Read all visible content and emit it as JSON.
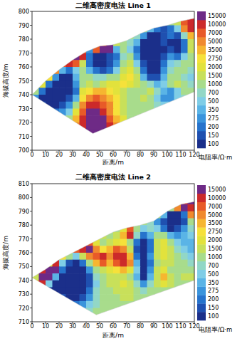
{
  "chart_data": [
    {
      "type": "heatmap",
      "title": "二维高密度电法 Line 1",
      "x_label": "距离/m",
      "y_label": "海拔高度/m",
      "xlim": [
        0,
        120
      ],
      "ylim": [
        700,
        800
      ],
      "xticks": [
        0,
        10,
        20,
        30,
        40,
        50,
        60,
        70,
        80,
        90,
        100,
        110,
        120
      ],
      "yticks": [
        700,
        710,
        720,
        730,
        740,
        750,
        760,
        770,
        780,
        790,
        800
      ],
      "x_edges": [
        0,
        5,
        10,
        15,
        20,
        25,
        30,
        35,
        40,
        45,
        50,
        55,
        60,
        65,
        70,
        75,
        80,
        85,
        90,
        95,
        100,
        105,
        110,
        115,
        120
      ],
      "y_edges": [
        795,
        790,
        785,
        780,
        775,
        770,
        765,
        760,
        755,
        750,
        745,
        740,
        735,
        730,
        725,
        720,
        715,
        710
      ],
      "surface": {
        "x": [
          0,
          10,
          20,
          30,
          40,
          50,
          60,
          70,
          80,
          90,
          100,
          110,
          120
        ],
        "y": [
          740,
          750,
          758,
          765,
          771,
          775,
          776,
          779,
          784,
          788,
          790,
          793,
          795
        ]
      },
      "base": {
        "x": [
          0,
          45,
          120
        ],
        "y": [
          740,
          712,
          742
        ]
      },
      "cells": [
        [
          null,
          null,
          null,
          null,
          null,
          null,
          null,
          null,
          null,
          null,
          null,
          null,
          null,
          null,
          null,
          null,
          null,
          null,
          null,
          null,
          1200,
          1700,
          8500,
          12000
        ],
        [
          null,
          null,
          null,
          null,
          null,
          null,
          null,
          null,
          null,
          null,
          null,
          null,
          null,
          null,
          null,
          null,
          1200,
          420,
          240,
          170,
          240,
          600,
          6000,
          12000
        ],
        [
          null,
          null,
          null,
          null,
          null,
          null,
          null,
          null,
          null,
          null,
          null,
          null,
          null,
          null,
          1200,
          850,
          310,
          120,
          120,
          170,
          240,
          170,
          850,
          4200
        ],
        [
          null,
          null,
          null,
          null,
          null,
          null,
          null,
          null,
          null,
          null,
          8500,
          16000,
          1700,
          1200,
          850,
          420,
          120,
          120,
          120,
          170,
          120,
          120,
          240,
          1700
        ],
        [
          null,
          null,
          null,
          null,
          null,
          null,
          null,
          6000,
          310,
          8500,
          16000,
          16000,
          420,
          1200,
          600,
          240,
          120,
          120,
          120,
          120,
          170,
          120,
          240,
          1700
        ],
        [
          null,
          null,
          null,
          null,
          null,
          null,
          16000,
          12000,
          240,
          120,
          120,
          170,
          240,
          850,
          1200,
          310,
          120,
          120,
          120,
          170,
          310,
          240,
          600,
          1200
        ],
        [
          null,
          null,
          null,
          null,
          8500,
          12000,
          8500,
          1700,
          240,
          120,
          120,
          170,
          310,
          1200,
          1700,
          600,
          170,
          120,
          120,
          240,
          600,
          850,
          1200,
          1200
        ],
        [
          null,
          null,
          null,
          6000,
          420,
          240,
          600,
          1200,
          420,
          240,
          170,
          240,
          600,
          1700,
          2400,
          1200,
          240,
          120,
          120,
          310,
          850,
          1200,
          1200,
          850
        ],
        [
          null,
          null,
          3100,
          310,
          120,
          120,
          420,
          1200,
          1200,
          850,
          850,
          1200,
          1200,
          2400,
          3100,
          1700,
          420,
          170,
          170,
          420,
          1200,
          1200,
          850,
          600
        ],
        [
          null,
          2400,
          240,
          120,
          120,
          120,
          310,
          1200,
          1700,
          1200,
          1700,
          2400,
          2400,
          3100,
          2400,
          1700,
          1200,
          850,
          420,
          600,
          1200,
          1700,
          1200,
          850
        ],
        [
          1200,
          240,
          120,
          120,
          120,
          120,
          240,
          2400,
          3100,
          4200,
          4200,
          3100,
          2400,
          1700,
          1200,
          1200,
          1200,
          1700,
          850,
          420,
          310,
          600,
          1200,
          1200
        ],
        [
          310,
          120,
          120,
          120,
          120,
          170,
          420,
          3100,
          6000,
          8500,
          6000,
          4200,
          3100,
          1700,
          1200,
          1200,
          1700,
          1200,
          600,
          310,
          310,
          600,
          850,
          null
        ],
        [
          null,
          170,
          120,
          120,
          170,
          310,
          1200,
          6000,
          12000,
          12000,
          8500,
          6000,
          3100,
          1700,
          1200,
          1200,
          1200,
          1200,
          850,
          600,
          600,
          null,
          null,
          null
        ],
        [
          null,
          null,
          null,
          240,
          310,
          600,
          2400,
          8500,
          16000,
          16000,
          12000,
          6000,
          3100,
          1700,
          1200,
          1200,
          1200,
          1200,
          null,
          null,
          null,
          null,
          null,
          null
        ],
        [
          null,
          null,
          null,
          null,
          600,
          1200,
          4200,
          12000,
          16000,
          16000,
          16000,
          8500,
          4200,
          2400,
          1200,
          1200,
          null,
          null,
          null,
          null,
          null,
          null,
          null,
          null
        ],
        [
          null,
          null,
          null,
          null,
          null,
          null,
          6000,
          12000,
          16000,
          16000,
          16000,
          12000,
          6000,
          null,
          null,
          null,
          null,
          null,
          null,
          null,
          null,
          null,
          null,
          null
        ],
        [
          null,
          null,
          null,
          null,
          null,
          null,
          null,
          null,
          16000,
          16000,
          16000,
          null,
          null,
          null,
          null,
          null,
          null,
          null,
          null,
          null,
          null,
          null,
          null,
          null
        ]
      ],
      "colorbar": {
        "label": "电阻率/Ω·m",
        "levels": [
          100,
          150,
          200,
          275,
          350,
          500,
          700,
          1000,
          1500,
          2000,
          2750,
          3500,
          5000,
          7000,
          10000,
          15000
        ],
        "colors": [
          "#1b2f8a",
          "#1f50b0",
          "#2673cc",
          "#3a94dc",
          "#5ab4e6",
          "#7fcde6",
          "#92d7c6",
          "#a8dc8c",
          "#c8e05a",
          "#e2e23c",
          "#f6e13a",
          "#f6b630",
          "#f08a2e",
          "#e85a28",
          "#cc2a2a",
          "#6e2a86"
        ]
      }
    },
    {
      "type": "heatmap",
      "title": "二维高密度电法 Line 2",
      "x_label": "距离/m",
      "y_label": "海拔高度/m",
      "xlim": [
        0,
        120
      ],
      "ylim": [
        710,
        810
      ],
      "xticks": [
        0,
        10,
        20,
        30,
        40,
        50,
        60,
        70,
        80,
        90,
        100,
        110,
        120
      ],
      "yticks": [
        710,
        720,
        730,
        740,
        750,
        760,
        770,
        780,
        790,
        800,
        810
      ],
      "x_edges": [
        0,
        5,
        10,
        15,
        20,
        25,
        30,
        35,
        40,
        45,
        50,
        55,
        60,
        65,
        70,
        75,
        80,
        85,
        90,
        95,
        100,
        105,
        110,
        115,
        120
      ],
      "y_edges": [
        800,
        795,
        790,
        785,
        780,
        775,
        770,
        765,
        760,
        755,
        750,
        745,
        740,
        735,
        730,
        725,
        720,
        715
      ],
      "surface": {
        "x": [
          0,
          10,
          20,
          30,
          40,
          50,
          60,
          70,
          80,
          90,
          100,
          110,
          120
        ],
        "y": [
          742,
          748,
          755,
          760,
          765,
          770,
          775,
          778,
          780,
          783,
          790,
          795,
          797
        ]
      },
      "base": {
        "x": [
          0,
          47.5,
          120
        ],
        "y": [
          742,
          715,
          740
        ]
      },
      "cells": [
        [
          null,
          null,
          null,
          null,
          null,
          null,
          null,
          null,
          null,
          null,
          null,
          null,
          null,
          null,
          null,
          null,
          null,
          null,
          null,
          null,
          null,
          null,
          12000,
          16000
        ],
        [
          null,
          null,
          null,
          null,
          null,
          null,
          null,
          null,
          null,
          null,
          null,
          null,
          null,
          null,
          null,
          null,
          null,
          null,
          null,
          null,
          1200,
          6000,
          16000,
          12000
        ],
        [
          null,
          null,
          null,
          null,
          null,
          null,
          null,
          null,
          null,
          null,
          null,
          null,
          null,
          null,
          null,
          null,
          null,
          null,
          1200,
          420,
          120,
          120,
          240,
          6000
        ],
        [
          null,
          null,
          null,
          null,
          null,
          null,
          null,
          null,
          null,
          null,
          null,
          null,
          null,
          null,
          null,
          null,
          1200,
          850,
          310,
          170,
          120,
          120,
          170,
          1200
        ],
        [
          null,
          null,
          null,
          null,
          null,
          null,
          null,
          null,
          null,
          null,
          null,
          null,
          1200,
          2400,
          8500,
          1200,
          600,
          850,
          600,
          240,
          120,
          170,
          310,
          850
        ],
        [
          null,
          null,
          null,
          null,
          null,
          null,
          null,
          null,
          null,
          null,
          1700,
          1200,
          1700,
          4200,
          12000,
          850,
          240,
          420,
          1200,
          1200,
          420,
          310,
          420,
          600
        ],
        [
          null,
          null,
          null,
          null,
          null,
          null,
          null,
          null,
          8500,
          2400,
          1200,
          1700,
          2400,
          3100,
          1200,
          240,
          120,
          240,
          1700,
          2400,
          1200,
          600,
          420,
          420
        ],
        [
          null,
          null,
          null,
          null,
          null,
          null,
          8500,
          12000,
          16000,
          6000,
          3100,
          4200,
          8500,
          6000,
          1700,
          170,
          120,
          240,
          1700,
          2400,
          1700,
          850,
          600,
          420
        ],
        [
          null,
          null,
          null,
          null,
          3100,
          1200,
          600,
          1700,
          6000,
          8500,
          12000,
          6000,
          12000,
          12000,
          4200,
          240,
          120,
          310,
          1700,
          2400,
          1700,
          1200,
          850,
          600
        ],
        [
          null,
          null,
          2400,
          12000,
          600,
          170,
          120,
          240,
          1200,
          4200,
          8500,
          4200,
          8500,
          12000,
          6000,
          420,
          120,
          240,
          1200,
          1700,
          1700,
          1200,
          1200,
          850
        ],
        [
          null,
          12000,
          16000,
          16000,
          240,
          120,
          120,
          120,
          310,
          1200,
          1700,
          2400,
          3100,
          4200,
          2400,
          600,
          120,
          310,
          1700,
          2400,
          1200,
          1200,
          1200,
          1200
        ],
        [
          1700,
          16000,
          16000,
          420,
          120,
          120,
          120,
          120,
          170,
          850,
          1200,
          1700,
          1700,
          1700,
          1200,
          420,
          120,
          420,
          1700,
          4200,
          1700,
          1200,
          1700,
          1700
        ],
        [
          6000,
          12000,
          600,
          120,
          120,
          120,
          120,
          120,
          170,
          600,
          1200,
          1700,
          1700,
          2400,
          1700,
          850,
          310,
          850,
          1700,
          2400,
          1700,
          1200,
          1200,
          1200
        ],
        [
          null,
          null,
          120,
          120,
          120,
          120,
          120,
          120,
          240,
          850,
          1200,
          1200,
          1700,
          1700,
          1700,
          1200,
          850,
          1200,
          1200,
          1200,
          1200,
          1200,
          null,
          null
        ],
        [
          null,
          null,
          null,
          null,
          170,
          120,
          120,
          170,
          310,
          850,
          1200,
          1200,
          1200,
          1700,
          1700,
          1200,
          1200,
          1200,
          1200,
          null,
          null,
          null,
          null,
          null
        ],
        [
          null,
          null,
          null,
          null,
          null,
          240,
          240,
          310,
          600,
          850,
          1200,
          1200,
          1200,
          1200,
          1200,
          1200,
          null,
          null,
          null,
          null,
          null,
          null,
          null,
          null
        ],
        [
          null,
          null,
          null,
          null,
          null,
          null,
          null,
          600,
          850,
          1200,
          1200,
          1200,
          1200,
          null,
          null,
          null,
          null,
          null,
          null,
          null,
          null,
          null,
          null,
          null
        ]
      ],
      "colorbar": {
        "label": "电阻率/Ω·m",
        "levels": [
          100,
          150,
          200,
          275,
          350,
          500,
          700,
          1000,
          1500,
          2000,
          2750,
          3500,
          5000,
          7000,
          10000,
          15000
        ],
        "colors": [
          "#1b2f8a",
          "#1f50b0",
          "#2673cc",
          "#3a94dc",
          "#5ab4e6",
          "#7fcde6",
          "#92d7c6",
          "#a8dc8c",
          "#c8e05a",
          "#e2e23c",
          "#f6e13a",
          "#f6b630",
          "#f08a2e",
          "#e85a28",
          "#cc2a2a",
          "#6e2a86"
        ]
      }
    }
  ]
}
